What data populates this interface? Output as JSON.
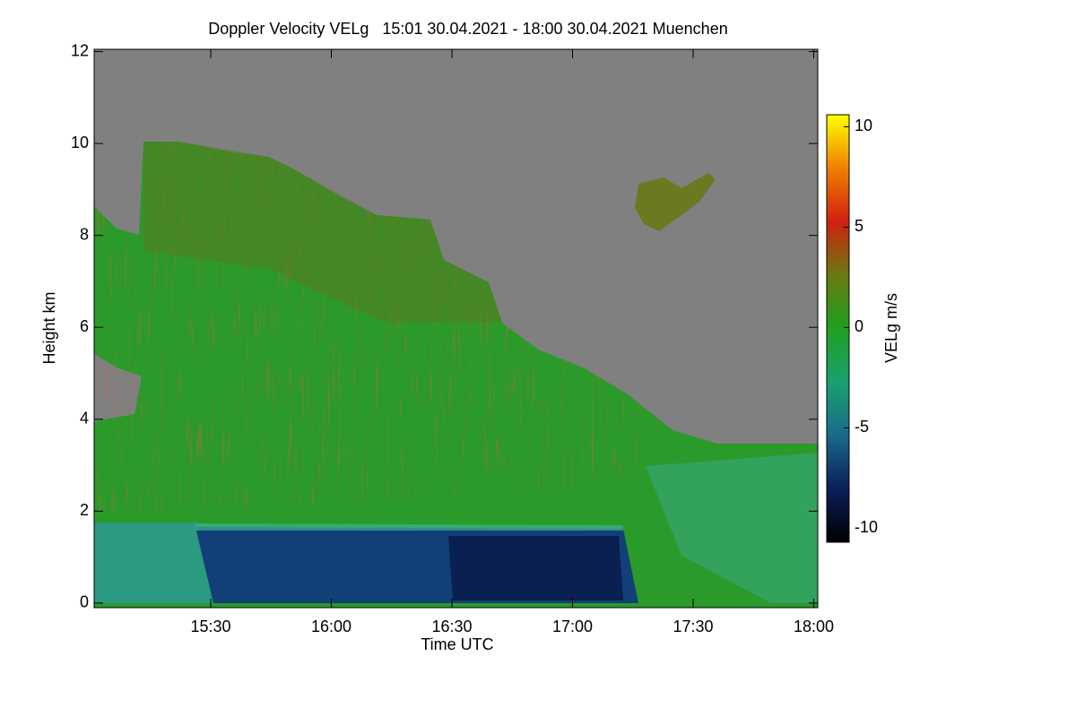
{
  "chart_data": {
    "type": "heatmap",
    "title": "Doppler Velocity VELg   15:01 30.04.2021 - 18:00 30.04.2021 Muenchen",
    "xlabel": "Time UTC",
    "ylabel": "Height km",
    "xlim": [
      901,
      1081
    ],
    "xticks": [
      {
        "value": 930,
        "label": "15:30"
      },
      {
        "value": 960,
        "label": "16:00"
      },
      {
        "value": 990,
        "label": "16:30"
      },
      {
        "value": 1020,
        "label": "17:00"
      },
      {
        "value": 1050,
        "label": "17:30"
      },
      {
        "value": 1080,
        "label": "18:00"
      }
    ],
    "ylim": [
      -0.1,
      12.05
    ],
    "yticks": [
      0,
      2,
      4,
      6,
      8,
      10,
      12
    ],
    "colorbar": {
      "label": "VELg m/s",
      "lim": [
        -10.7,
        10.6
      ],
      "ticks": [
        -10,
        -5,
        0,
        5,
        10
      ],
      "colors": [
        "#000000",
        "#0a1f5a",
        "#1a6a8a",
        "#1aa070",
        "#1ea020",
        "#6a7a10",
        "#d02010",
        "#f08000",
        "#ffff00"
      ]
    }
  }
}
